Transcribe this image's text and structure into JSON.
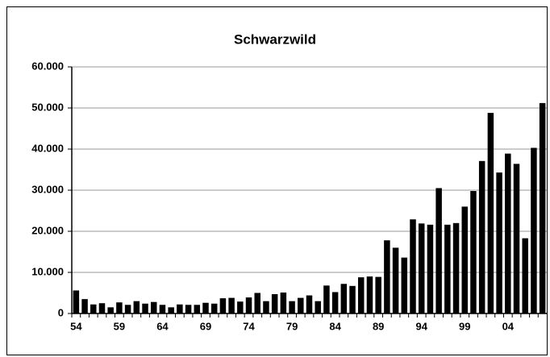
{
  "chart_data": {
    "type": "bar",
    "title": "Schwarzwild",
    "categories": [
      "54",
      null,
      null,
      null,
      null,
      "59",
      null,
      null,
      null,
      null,
      "64",
      null,
      null,
      null,
      null,
      "69",
      null,
      null,
      null,
      null,
      "74",
      null,
      null,
      null,
      null,
      "79",
      null,
      null,
      null,
      null,
      "84",
      null,
      null,
      null,
      null,
      "89",
      null,
      null,
      null,
      null,
      "94",
      null,
      null,
      null,
      null,
      "99",
      null,
      null,
      null,
      null,
      "04",
      null,
      null,
      null,
      null
    ],
    "values": [
      5600,
      3500,
      2200,
      2500,
      1500,
      2700,
      2100,
      3000,
      2400,
      2800,
      2100,
      1500,
      2200,
      2100,
      2100,
      2600,
      2400,
      3700,
      3800,
      2900,
      3900,
      5000,
      3000,
      4700,
      5100,
      3000,
      3800,
      4400,
      3000,
      6800,
      5200,
      7200,
      6700,
      8800,
      9000,
      8900,
      17800,
      16000,
      13600,
      22900,
      21900,
      21600,
      30500,
      21600,
      22000,
      26000,
      29800,
      37100,
      48800,
      34300,
      38900,
      36400,
      18300,
      40300,
      51200
    ],
    "color": "#000000",
    "ylim": [
      0,
      60000
    ],
    "yticks": [
      0,
      {
        "value": 10000,
        "label": "10.000"
      },
      {
        "value": 20000,
        "label": "20.000"
      },
      {
        "value": 30000,
        "label": "30.000"
      },
      {
        "value": 40000,
        "label": "40.000"
      },
      {
        "value": 50000,
        "label": "50.000"
      },
      {
        "value": 60000,
        "label": "60.000"
      }
    ],
    "grid": true
  }
}
